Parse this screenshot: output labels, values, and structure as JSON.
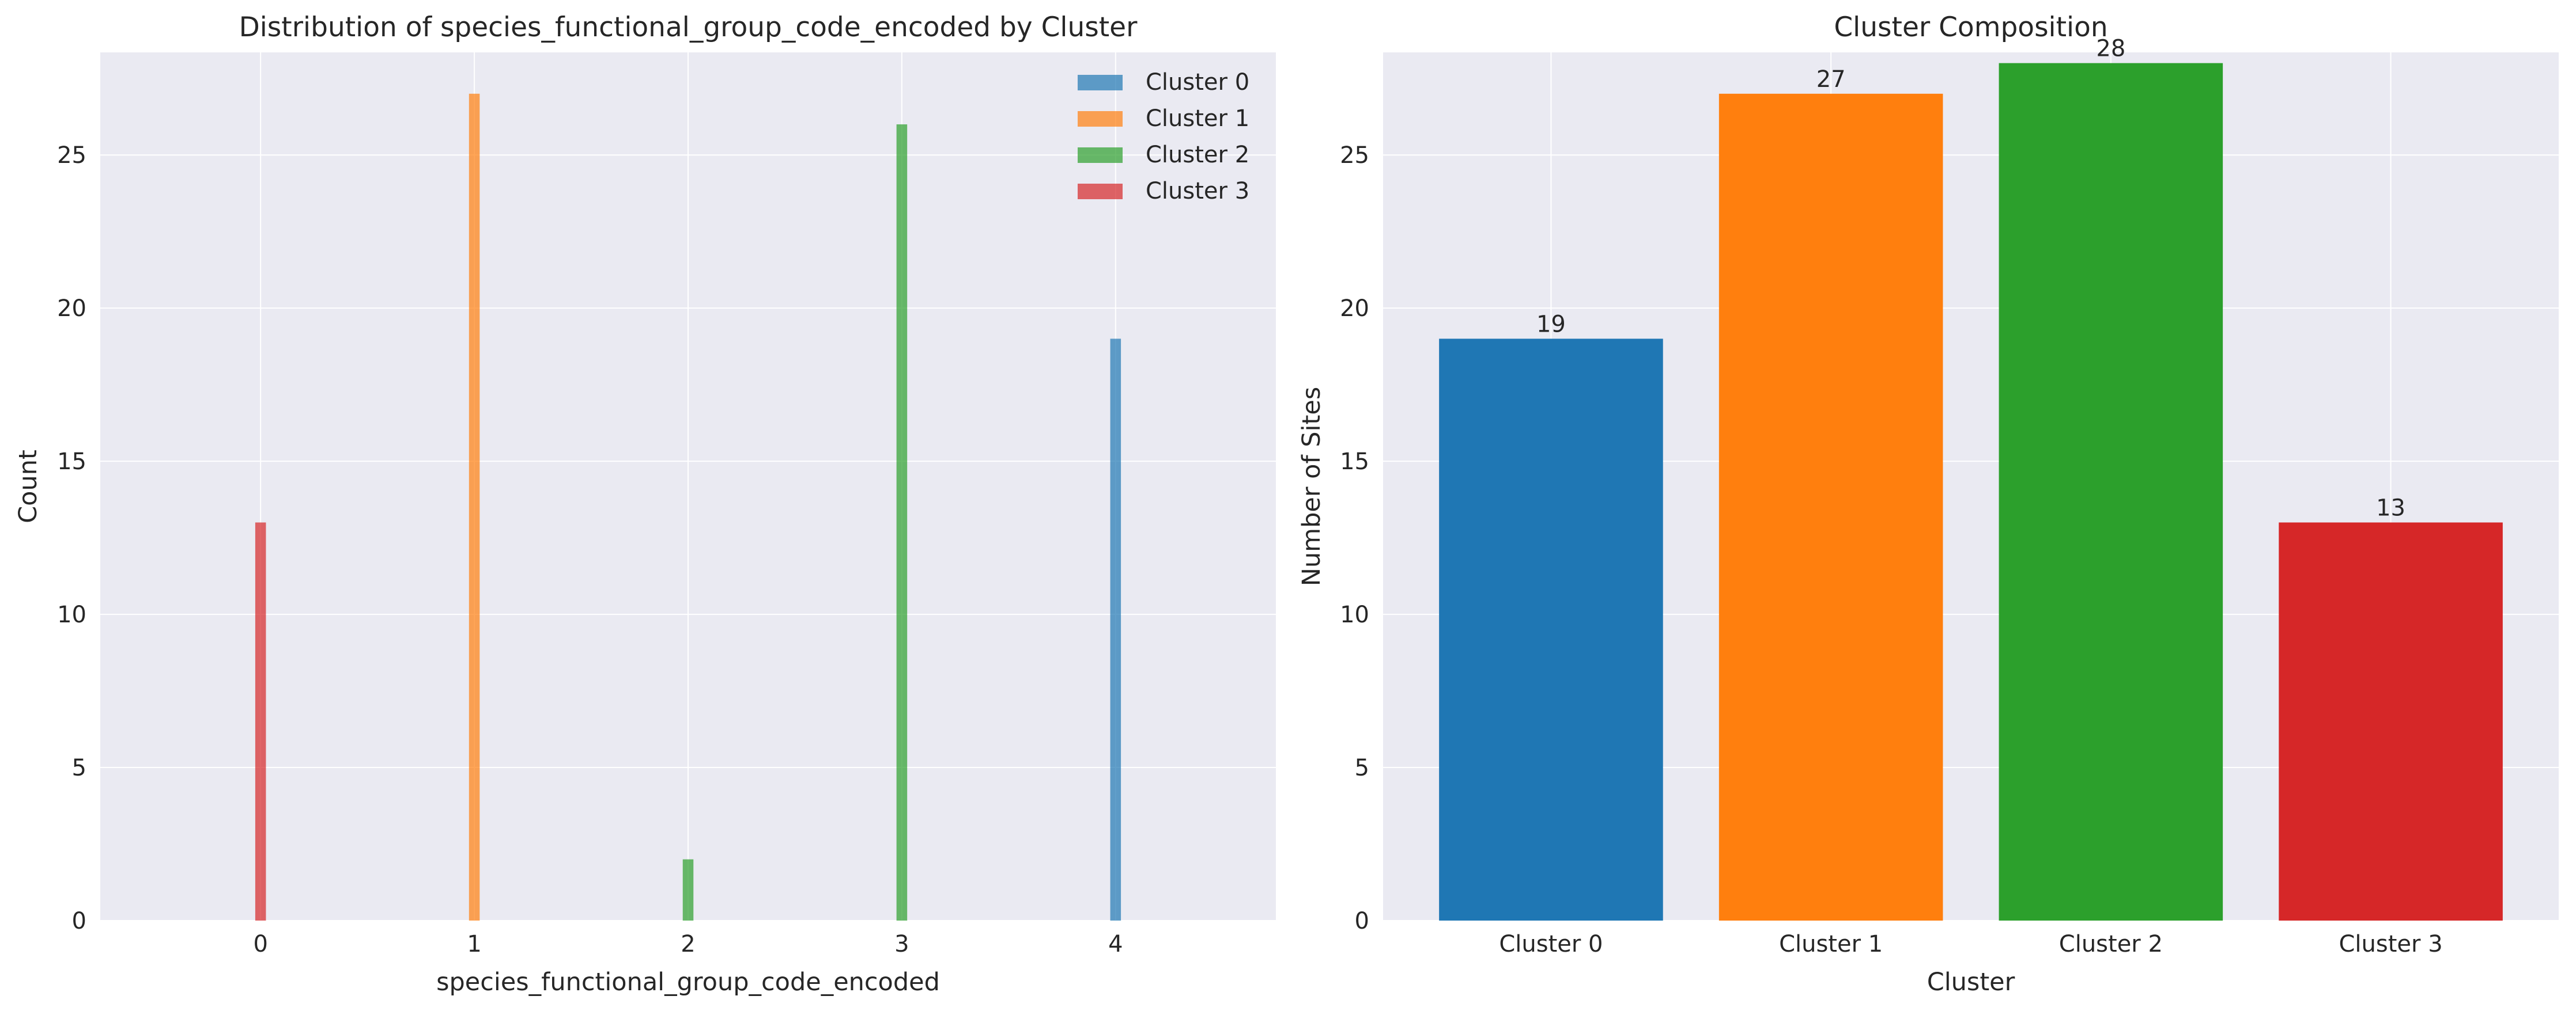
{
  "chart_data": [
    {
      "type": "bar",
      "title": "Distribution of species_functional_group_code_encoded by Cluster",
      "xlabel": "species_functional_group_code_encoded",
      "ylabel": "Count",
      "xlim": [
        -0.75,
        4.75
      ],
      "ylim": [
        0,
        28.35
      ],
      "x_ticks": [
        "0",
        "1",
        "2",
        "3",
        "4"
      ],
      "y_ticks": [
        "0",
        "5",
        "10",
        "15",
        "20",
        "25"
      ],
      "grid": true,
      "legend_position": "top-right",
      "series": [
        {
          "name": "Cluster 0",
          "color": "#1f77b4",
          "points": [
            {
              "x": 4,
              "y": 19
            }
          ]
        },
        {
          "name": "Cluster 1",
          "color": "#ff7f0e",
          "points": [
            {
              "x": 1,
              "y": 27
            }
          ]
        },
        {
          "name": "Cluster 2",
          "color": "#2ca02c",
          "points": [
            {
              "x": 2,
              "y": 2
            },
            {
              "x": 3,
              "y": 26
            }
          ]
        },
        {
          "name": "Cluster 3",
          "color": "#d62728",
          "points": [
            {
              "x": 0,
              "y": 13
            }
          ]
        }
      ]
    },
    {
      "type": "bar",
      "title": "Cluster Composition",
      "xlabel": "Cluster",
      "ylabel": "Number of Sites",
      "ylim": [
        0,
        28.35
      ],
      "y_ticks": [
        "0",
        "5",
        "10",
        "15",
        "20",
        "25"
      ],
      "grid": true,
      "categories": [
        "Cluster 0",
        "Cluster 1",
        "Cluster 2",
        "Cluster 3"
      ],
      "values": [
        19,
        27,
        28,
        13
      ],
      "value_labels": [
        "19",
        "27",
        "28",
        "13"
      ],
      "colors": [
        "#1f77b4",
        "#ff7f0e",
        "#2ca02c",
        "#d62728"
      ]
    }
  ]
}
